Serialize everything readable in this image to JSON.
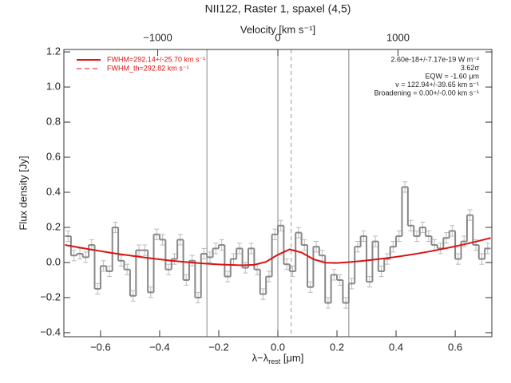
{
  "chart_data": {
    "type": "step",
    "title": "NII122, Raster 1, spaxel (4,5)",
    "xlabel": "λ−λ",
    "xlabel_sub": "rest",
    "xlabel_unit": " [μm]",
    "ylabel": "Flux density [Jy]",
    "x2label": "Velocity [km s⁻¹]",
    "xlim": [
      -0.724,
      0.724
    ],
    "ylim": [
      -0.423,
      1.214
    ],
    "x2lim": [
      -1781,
      1781
    ],
    "xticks": [
      {
        "value": -0.6,
        "label": "−0.6"
      },
      {
        "value": -0.4,
        "label": "−0.4"
      },
      {
        "value": -0.2,
        "label": "−0.2"
      },
      {
        "value": 0,
        "label": "0.0"
      },
      {
        "value": 0.2,
        "label": "0.2"
      },
      {
        "value": 0.4,
        "label": "0.4"
      },
      {
        "value": 0.6,
        "label": "0.6"
      }
    ],
    "yticks": [
      {
        "value": -0.4,
        "label": "−0.4"
      },
      {
        "value": -0.2,
        "label": "−0.2"
      },
      {
        "value": 0,
        "label": "0.0"
      },
      {
        "value": 0.2,
        "label": "0.2"
      },
      {
        "value": 0.4,
        "label": "0.4"
      },
      {
        "value": 0.6,
        "label": "0.6"
      },
      {
        "value": 0.8,
        "label": "0.8"
      },
      {
        "value": 1.0,
        "label": "1.0"
      },
      {
        "value": 1.2,
        "label": "1.2"
      }
    ],
    "x2ticks": [
      {
        "value": -1000,
        "label": "−1000"
      },
      0,
      1000
    ],
    "series": [
      {
        "color": "#888888",
        "error_color": "#bbbbbb",
        "error": 0.03,
        "x": [
          -0.71,
          -0.69,
          -0.67,
          -0.65,
          -0.63,
          -0.61,
          -0.59,
          -0.57,
          -0.55,
          -0.53,
          -0.51,
          -0.49,
          -0.47,
          -0.45,
          -0.43,
          -0.41,
          -0.39,
          -0.37,
          -0.35,
          -0.33,
          -0.31,
          -0.29,
          -0.27,
          -0.25,
          -0.23,
          -0.21,
          -0.19,
          -0.17,
          -0.15,
          -0.13,
          -0.11,
          -0.09,
          -0.07,
          -0.05,
          -0.03,
          -0.01,
          0.01,
          0.03,
          0.05,
          0.07,
          0.09,
          0.11,
          0.13,
          0.15,
          0.17,
          0.19,
          0.21,
          0.23,
          0.25,
          0.27,
          0.29,
          0.31,
          0.33,
          0.35,
          0.37,
          0.39,
          0.41,
          0.43,
          0.45,
          0.47,
          0.49,
          0.51,
          0.53,
          0.55,
          0.57,
          0.59,
          0.61,
          0.63,
          0.65,
          0.67,
          0.69,
          0.71
        ],
        "values": [
          0.15,
          0.04,
          0.05,
          0.03,
          0.1,
          -0.15,
          -0.02,
          -0.05,
          0.2,
          0.01,
          -0.04,
          -0.19,
          0.07,
          0.07,
          -0.17,
          0.16,
          0.13,
          -0.04,
          0.02,
          0.13,
          -0.1,
          0.01,
          -0.2,
          0.05,
          0.03,
          0.08,
          0.1,
          -0.08,
          0.02,
          0.08,
          -0.03,
          0.08,
          -0.04,
          -0.18,
          -0.08,
          0.16,
          0.21,
          -0.01,
          -0.05,
          0.17,
          0.1,
          -0.14,
          0.09,
          0.04,
          -0.23,
          -0.07,
          -0.1,
          -0.23,
          -0.12,
          0.09,
          0.15,
          -0.11,
          0.12,
          -0.05,
          0.02,
          0.09,
          0.15,
          0.43,
          0.21,
          0.15,
          0.2,
          0.15,
          0.1,
          0.08,
          0.14,
          0.18,
          0.02,
          0.12,
          0.27,
          0.1,
          0.02,
          0.08
        ]
      }
    ],
    "fit": {
      "color": "#dd1111",
      "x": [
        -0.72,
        -0.68,
        -0.64,
        -0.6,
        -0.56,
        -0.52,
        -0.48,
        -0.44,
        -0.4,
        -0.36,
        -0.32,
        -0.28,
        -0.24,
        -0.2,
        -0.16,
        -0.12,
        -0.08,
        -0.04,
        0.0,
        0.04,
        0.08,
        0.12,
        0.16,
        0.2,
        0.24,
        0.28,
        0.32,
        0.36,
        0.4,
        0.44,
        0.48,
        0.52,
        0.56,
        0.6,
        0.64,
        0.68,
        0.72
      ],
      "y": [
        0.1,
        0.088,
        0.076,
        0.065,
        0.054,
        0.044,
        0.035,
        0.026,
        0.018,
        0.01,
        0.004,
        -0.002,
        -0.007,
        -0.011,
        -0.014,
        -0.016,
        -0.013,
        0.004,
        0.044,
        0.075,
        0.057,
        0.019,
        -0.001,
        -0.003,
        0.002,
        0.008,
        0.015,
        0.023,
        0.032,
        0.042,
        0.053,
        0.065,
        0.078,
        0.092,
        0.107,
        0.123,
        0.14
      ]
    },
    "vlines": [
      -0.24,
      0,
      0.24
    ],
    "vline_dashed": 0.045,
    "legend": [
      "FWHM=292.14+/-25.70 km s⁻¹",
      "FWHM_th=292.82 km s⁻¹"
    ],
    "annotations": [
      "2.60e-18+/-7.17e-19 W m⁻²",
      "3.62σ",
      "EQW = -1.60 μm",
      "v = 122.94+/-39.65 km s⁻¹",
      "Broadening = 0.00+/-0.00 km s⁻¹"
    ]
  }
}
